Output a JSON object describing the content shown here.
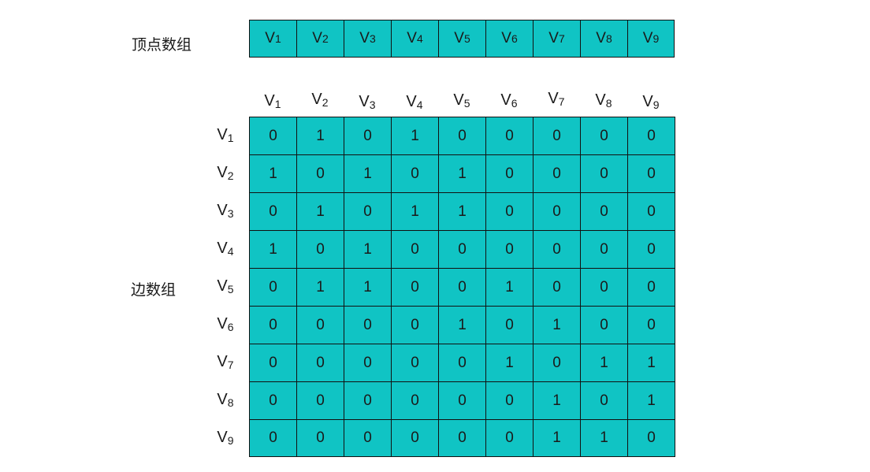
{
  "vertex_array": {
    "label": "顶点数组",
    "items": [
      {
        "main": "V",
        "sub": "1"
      },
      {
        "main": "V",
        "sub": "2"
      },
      {
        "main": "V",
        "sub": "3"
      },
      {
        "main": "V",
        "sub": "4"
      },
      {
        "main": "V",
        "sub": "5"
      },
      {
        "main": "V",
        "sub": "6"
      },
      {
        "main": "V",
        "sub": "7"
      },
      {
        "main": "V",
        "sub": "8"
      },
      {
        "main": "V",
        "sub": "9"
      }
    ]
  },
  "edge_array": {
    "label": "边数组",
    "column_headers": [
      {
        "main": "V",
        "sub": "1"
      },
      {
        "main": "V",
        "sub": "2"
      },
      {
        "main": "V",
        "sub": "3"
      },
      {
        "main": "V",
        "sub": "4"
      },
      {
        "main": "V",
        "sub": "5"
      },
      {
        "main": "V",
        "sub": "6"
      },
      {
        "main": "V",
        "sub": "7"
      },
      {
        "main": "V",
        "sub": "8"
      },
      {
        "main": "V",
        "sub": "9"
      }
    ],
    "row_headers": [
      {
        "main": "V",
        "sub": "1"
      },
      {
        "main": "V",
        "sub": "2"
      },
      {
        "main": "V",
        "sub": "3"
      },
      {
        "main": "V",
        "sub": "4"
      },
      {
        "main": "V",
        "sub": "5"
      },
      {
        "main": "V",
        "sub": "6"
      },
      {
        "main": "V",
        "sub": "7"
      },
      {
        "main": "V",
        "sub": "8"
      },
      {
        "main": "V",
        "sub": "9"
      }
    ],
    "matrix": [
      [
        "0",
        "1",
        "0",
        "1",
        "0",
        "0",
        "0",
        "0",
        "0"
      ],
      [
        "1",
        "0",
        "1",
        "0",
        "1",
        "0",
        "0",
        "0",
        "0"
      ],
      [
        "0",
        "1",
        "0",
        "1",
        "1",
        "0",
        "0",
        "0",
        "0"
      ],
      [
        "1",
        "0",
        "1",
        "0",
        "0",
        "0",
        "0",
        "0",
        "0"
      ],
      [
        "0",
        "1",
        "1",
        "0",
        "0",
        "1",
        "0",
        "0",
        "0"
      ],
      [
        "0",
        "0",
        "0",
        "0",
        "1",
        "0",
        "1",
        "0",
        "0"
      ],
      [
        "0",
        "0",
        "0",
        "0",
        "0",
        "1",
        "0",
        "1",
        "1"
      ],
      [
        "0",
        "0",
        "0",
        "0",
        "0",
        "0",
        "1",
        "0",
        "1"
      ],
      [
        "0",
        "0",
        "0",
        "0",
        "0",
        "0",
        "1",
        "1",
        "0"
      ]
    ]
  },
  "colors": {
    "cell_fill": "#10c4c4",
    "cell_border": "#111111"
  }
}
